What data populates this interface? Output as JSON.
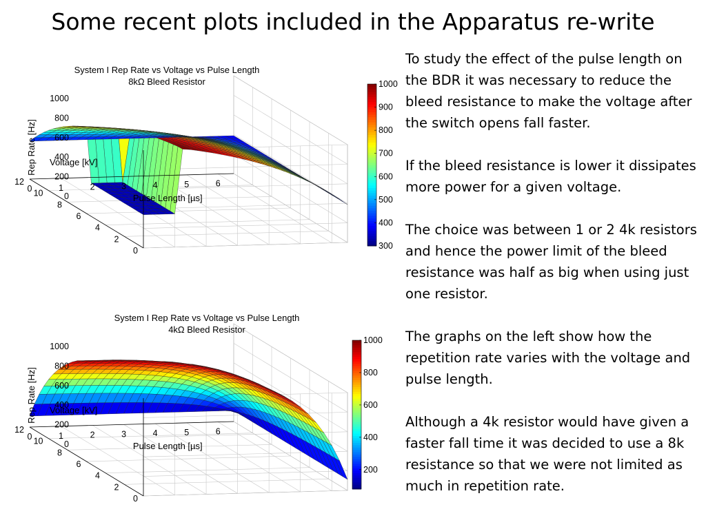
{
  "slide": {
    "title": "Some recent plots included in the Apparatus re-write"
  },
  "body_text": [
    "To study the effect of the pulse length on the BDR it was necessary to reduce the bleed resistance to make the voltage after the switch opens fall faster.",
    "If the bleed resistance is lower it dissipates more power for a given voltage.",
    "The choice was between 1 or 2 4k resistors and hence the power limit of the bleed resistance was half as big when using just one resistor.",
    "The graphs on the left show how the repetition rate varies with the voltage and pulse length.",
    "Although a 4k resistor would have given a faster fall time it was decided to use a 8k resistance so that we were not limited as much in repetition rate."
  ],
  "chart_data": [
    {
      "type": "surface",
      "title": "System I Rep Rate vs Voltage vs Pulse Length",
      "subtitle": "8kΩ Bleed Resistor",
      "xlabel": "Pulse Length [µs]",
      "ylabel": "Voltage [kV]",
      "zlabel": "Rep Rate [Hz]",
      "xlim": [
        0,
        6.5
      ],
      "ylim": [
        0,
        12
      ],
      "zlim": [
        0,
        1000
      ],
      "x_ticks": [
        "0",
        "1",
        "2",
        "3",
        "4",
        "5",
        "6"
      ],
      "y_ticks": [
        "0",
        "2",
        "4",
        "6",
        "8",
        "10",
        "12"
      ],
      "z_ticks": [
        "0",
        "200",
        "400",
        "600",
        "800",
        "1000"
      ],
      "colorbar": {
        "min": 300,
        "max": 1000,
        "ticks": [
          "300",
          "400",
          "500",
          "600",
          "700",
          "800",
          "900",
          "1000"
        ]
      },
      "colormap": "jet",
      "grid": true,
      "surface": {
        "plateau": 1000,
        "step_voltage": 6,
        "step_level": 300,
        "decay_scale_x": 3.2,
        "decay_scale_y": 5.5,
        "edge_min": 310
      }
    },
    {
      "type": "surface",
      "title": "System I Rep Rate vs Voltage vs Pulse Length",
      "subtitle": "4kΩ Bleed Resistor",
      "xlabel": "Pulse Length [µs]",
      "ylabel": "Voltage [kV]",
      "zlabel": "Rep Rate [Hz]",
      "xlim": [
        0,
        6.5
      ],
      "ylim": [
        0,
        12
      ],
      "zlim": [
        0,
        1000
      ],
      "x_ticks": [
        "0",
        "1",
        "2",
        "3",
        "4",
        "5",
        "6"
      ],
      "y_ticks": [
        "0",
        "2",
        "4",
        "6",
        "8",
        "10",
        "12"
      ],
      "z_ticks": [
        "0",
        "200",
        "400",
        "600",
        "800",
        "1000"
      ],
      "colorbar": {
        "min": 80,
        "max": 1000,
        "ticks": [
          "200",
          "400",
          "600",
          "800",
          "1000"
        ]
      },
      "colormap": "jet",
      "grid": true,
      "surface": {
        "plateau": 1000,
        "step_voltage": 0,
        "step_level": 1000,
        "decay_scale_x": 1.3,
        "decay_scale_y": 3.5,
        "edge_min": 90
      }
    }
  ]
}
